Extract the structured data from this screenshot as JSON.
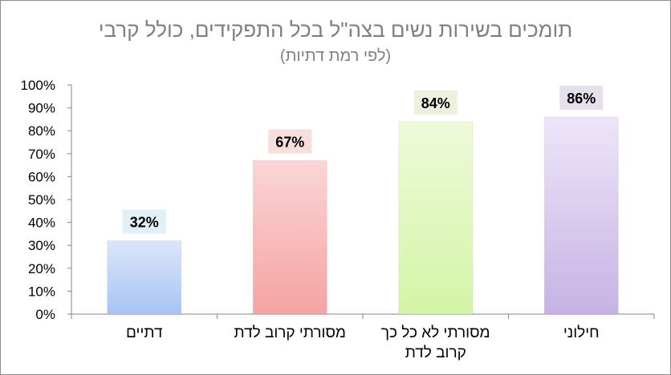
{
  "chart_data": {
    "type": "bar",
    "title": "תומכים בשירות נשים בצה\"ל בכל התפקידים, כולל קרבי",
    "subtitle": "(לפי רמת דתיות)",
    "xlabel": "",
    "ylabel": "",
    "ylim": [
      0,
      100
    ],
    "y_ticks": [
      "0%",
      "10%",
      "20%",
      "30%",
      "40%",
      "50%",
      "60%",
      "70%",
      "80%",
      "90%",
      "100%"
    ],
    "grid": false,
    "legend": "none",
    "categories": [
      [
        "דתיים"
      ],
      [
        "מסורתי קרוב לדת"
      ],
      [
        "מסורתי לא כל כך",
        "קרוב לדת"
      ],
      [
        "חילוני"
      ]
    ],
    "values": [
      32,
      67,
      84,
      86
    ],
    "value_labels": [
      "32%",
      "67%",
      "84%",
      "86%"
    ],
    "colors": {
      "bar_top": [
        "#dbe6fb",
        "#fbd5d5",
        "#eefad9",
        "#ede5f8"
      ],
      "bar_bottom": [
        "#a7c4f5",
        "#f5a3a3",
        "#d3f5a6",
        "#c6b3e4"
      ],
      "label_bg": [
        "#dff0f7",
        "#f6dedb",
        "#ebf1dd",
        "#e5e0ec"
      ],
      "title": "#7f7f7f",
      "axis": "#868686",
      "text": "#000000"
    }
  }
}
